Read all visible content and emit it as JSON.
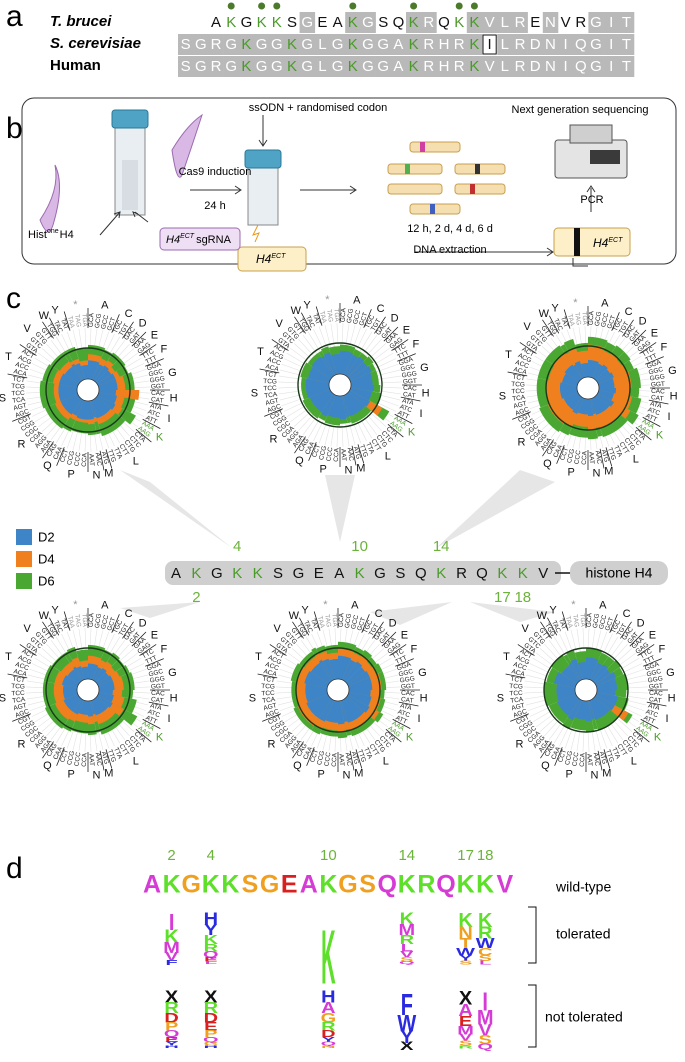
{
  "panel_labels": [
    "a",
    "b",
    "c",
    "d"
  ],
  "alignment": {
    "rows": [
      {
        "species": "T. brucei",
        "offset": 2,
        "sequence": "AKGKKSGEAKGSQKRQKKVLRENVRGIT"
      },
      {
        "species": "S. cerevisiae",
        "offset": 0,
        "sequence": "SGRGKGGKGLGKGGAKRHRKILRDNIQGIT"
      },
      {
        "species": "Human",
        "offset": 0,
        "sequence": "SGRGKGGKGLGKGGAKRHRKVLRDNIQGIT"
      }
    ],
    "highlight_residue": "K",
    "highlight_color": "#4a9a2a",
    "conserved_color": "#b9b9b9"
  },
  "workflow": {
    "hist_label": {
      "base": "Hist",
      "sup": "one",
      "rest": "H4"
    },
    "sgrna_label": {
      "base": "H4",
      "sup": "ECT",
      "rest": "sgRNA"
    },
    "ect_label": {
      "base": "H4",
      "sup": "ECT"
    },
    "cas9": "Cas9 induction",
    "time": "24 h",
    "ssodn": "ssODN + randomised codon",
    "ngs": "Next generation sequencing",
    "timepoints": "12 h, 2 d, 4 d, 6 d",
    "extraction": "DNA extraction",
    "pcr": "PCR"
  },
  "chart_data": {
    "type": "radial-bar",
    "series_names": [
      "D2",
      "D4",
      "D6"
    ],
    "colors": [
      "#3d85c6",
      "#f07f1e",
      "#4aa832"
    ],
    "groups": [
      {
        "aa": "A",
        "codons": [
          "GCA",
          "GCG",
          "GCC",
          "GCT"
        ]
      },
      {
        "aa": "C",
        "codons": [
          "TGC",
          "TGT"
        ]
      },
      {
        "aa": "D",
        "codons": [
          "GAC",
          "GAT"
        ]
      },
      {
        "aa": "E",
        "codons": [
          "GAA",
          "GAG"
        ]
      },
      {
        "aa": "F",
        "codons": [
          "TTC",
          "TTT"
        ]
      },
      {
        "aa": "G",
        "codons": [
          "GGA",
          "GGC",
          "GGG",
          "GGT"
        ]
      },
      {
        "aa": "H",
        "codons": [
          "CAC",
          "CAT"
        ]
      },
      {
        "aa": "I",
        "codons": [
          "ATA",
          "ATC",
          "ATT"
        ]
      },
      {
        "aa": "K",
        "codons": [
          "AAA",
          "AAG"
        ],
        "color": "#4a9a2a"
      },
      {
        "aa": "L",
        "codons": [
          "CTA",
          "CTC",
          "CTG",
          "CTT",
          "TTA",
          "TTG"
        ]
      },
      {
        "aa": "M",
        "codons": [
          "ATG"
        ]
      },
      {
        "aa": "N",
        "codons": [
          "AAC",
          "AAT"
        ]
      },
      {
        "aa": "P",
        "codons": [
          "CCA",
          "CCC",
          "CCG",
          "CCT"
        ]
      },
      {
        "aa": "Q",
        "codons": [
          "CAA",
          "CAG"
        ]
      },
      {
        "aa": "R",
        "codons": [
          "AGA",
          "AGG",
          "CGA",
          "CGC",
          "CGG",
          "CGT"
        ]
      },
      {
        "aa": "S",
        "codons": [
          "AGC",
          "AGT",
          "TCA",
          "TCC",
          "TCG",
          "TCT"
        ]
      },
      {
        "aa": "T",
        "codons": [
          "ACA",
          "ACC",
          "ACG",
          "ACT"
        ]
      },
      {
        "aa": "V",
        "codons": [
          "GTA",
          "GTC",
          "GTG",
          "GTT"
        ]
      },
      {
        "aa": "W",
        "codons": [
          "TGG"
        ]
      },
      {
        "aa": "Y",
        "codons": [
          "TAC",
          "TAT"
        ]
      },
      {
        "aa": "*",
        "codons": [
          "TAA",
          "TAG",
          "TGA"
        ],
        "color": "#999999"
      }
    ],
    "charts": [
      {
        "residue": "4",
        "series": [
          [
            0.6,
            0.55,
            0.6,
            0.55,
            0.6,
            0.6,
            0.55,
            0.6,
            0.65,
            0.6,
            0.55,
            0.6,
            0.6,
            0.55,
            0.6,
            0.6,
            0.6,
            0.55,
            0.6,
            0.55,
            0.45
          ],
          [
            0.8,
            0.75,
            0.8,
            0.7,
            0.75,
            0.85,
            1.3,
            0.85,
            0.9,
            0.8,
            0.7,
            0.75,
            0.7,
            0.7,
            0.8,
            0.75,
            0.8,
            0.75,
            0.7,
            0.7,
            0.6
          ],
          [
            1.1,
            1.05,
            1.1,
            1.1,
            1.05,
            1.15,
            1.25,
            1.2,
            1.4,
            1.2,
            1.1,
            1.1,
            1.05,
            1.1,
            1.15,
            1.2,
            1.15,
            1.1,
            1.1,
            1.1,
            1.0
          ]
        ]
      },
      {
        "residue": "10",
        "series": [
          [
            0.75,
            0.7,
            0.75,
            0.7,
            0.75,
            0.7,
            0.75,
            0.7,
            0.75,
            0.7,
            0.7,
            0.75,
            0.7,
            0.75,
            0.7,
            0.75,
            0.7,
            0.75,
            0.7,
            0.75,
            0.65
          ],
          [
            0.5,
            0.45,
            0.45,
            0.5,
            0.45,
            0.5,
            0.45,
            0.5,
            1.2,
            0.5,
            0.45,
            0.5,
            0.45,
            0.5,
            0.45,
            0.5,
            0.45,
            0.5,
            0.45,
            0.5,
            0.4
          ],
          [
            0.95,
            0.9,
            0.9,
            0.95,
            0.9,
            0.9,
            0.95,
            1.0,
            1.45,
            0.95,
            0.9,
            0.9,
            0.95,
            0.9,
            0.95,
            0.9,
            0.95,
            0.9,
            0.9,
            0.95,
            0.9
          ]
        ]
      },
      {
        "residue": "14",
        "series": [
          [
            0.55,
            0.5,
            0.55,
            0.5,
            0.55,
            0.5,
            0.55,
            0.5,
            0.6,
            0.55,
            0.5,
            0.55,
            0.5,
            0.55,
            0.5,
            0.55,
            0.5,
            0.55,
            0.5,
            0.55,
            0.45
          ],
          [
            1.05,
            0.95,
            1.0,
            0.95,
            1.0,
            1.05,
            1.0,
            1.1,
            1.2,
            1.0,
            0.95,
            1.0,
            0.9,
            1.0,
            1.05,
            1.0,
            0.95,
            1.0,
            0.95,
            1.0,
            0.85
          ],
          [
            1.3,
            1.25,
            1.3,
            1.3,
            1.25,
            1.35,
            1.3,
            1.4,
            1.5,
            1.3,
            1.25,
            1.3,
            1.25,
            1.3,
            1.35,
            1.3,
            1.3,
            1.3,
            1.25,
            1.3,
            1.1
          ]
        ]
      },
      {
        "residue": "2",
        "series": [
          [
            0.5,
            0.45,
            0.5,
            0.45,
            0.5,
            0.5,
            0.45,
            0.5,
            0.55,
            0.5,
            0.45,
            0.5,
            0.45,
            0.5,
            0.5,
            0.45,
            0.5,
            0.45,
            0.5,
            0.45,
            0.4
          ],
          [
            0.75,
            0.7,
            0.75,
            0.7,
            0.75,
            0.8,
            0.75,
            0.85,
            0.95,
            0.8,
            0.7,
            0.75,
            0.7,
            0.75,
            0.8,
            0.75,
            0.75,
            0.7,
            0.7,
            0.75,
            0.6
          ],
          [
            1.1,
            1.05,
            1.1,
            1.05,
            1.1,
            1.15,
            1.1,
            1.25,
            1.45,
            1.15,
            1.05,
            1.1,
            1.05,
            1.1,
            1.15,
            1.1,
            1.1,
            1.05,
            1.05,
            1.1,
            0.95
          ]
        ]
      },
      {
        "residue": "17",
        "series": [
          [
            0.75,
            0.7,
            0.75,
            0.7,
            0.75,
            0.75,
            0.7,
            0.75,
            0.8,
            0.75,
            0.7,
            0.75,
            0.7,
            0.75,
            0.75,
            0.7,
            0.75,
            0.7,
            0.75,
            0.7,
            0.65
          ],
          [
            1.0,
            0.95,
            1.0,
            0.95,
            1.0,
            1.05,
            1.0,
            1.05,
            1.15,
            1.0,
            0.95,
            1.0,
            0.95,
            1.0,
            1.05,
            1.0,
            1.0,
            0.95,
            1.0,
            0.95,
            0.85
          ],
          [
            1.2,
            1.15,
            1.2,
            1.15,
            1.2,
            1.2,
            1.15,
            1.2,
            1.3,
            1.2,
            1.15,
            1.2,
            1.15,
            1.2,
            1.2,
            1.15,
            1.2,
            1.15,
            1.2,
            1.15,
            1.1
          ]
        ]
      },
      {
        "residue": "18",
        "series": [
          [
            0.7,
            0.6,
            0.65,
            0.6,
            0.7,
            0.65,
            0.6,
            0.7,
            0.7,
            0.65,
            0.6,
            0.65,
            0.6,
            0.7,
            0.65,
            0.6,
            0.7,
            0.6,
            0.65,
            0.7,
            0.55
          ],
          [
            0.6,
            0.55,
            0.55,
            0.6,
            0.55,
            0.6,
            0.55,
            0.6,
            1.2,
            0.6,
            0.55,
            0.6,
            0.55,
            0.6,
            0.55,
            0.6,
            0.55,
            0.6,
            0.55,
            0.6,
            0.5
          ],
          [
            1.0,
            0.95,
            0.95,
            1.0,
            0.95,
            1.0,
            0.95,
            1.05,
            1.35,
            1.0,
            0.95,
            1.0,
            0.95,
            1.0,
            0.95,
            1.0,
            0.95,
            1.0,
            0.95,
            1.0,
            0.9
          ]
        ]
      }
    ]
  },
  "histone": {
    "sequence": "AKGKKSGEAKGSQKRQKKV",
    "name": "histone H4",
    "positions_above": [
      {
        "index": 3,
        "label": "4"
      },
      {
        "index": 9,
        "label": "10"
      },
      {
        "index": 13,
        "label": "14"
      }
    ],
    "positions_below": [
      {
        "index": 1,
        "label": "2"
      },
      {
        "index": 16,
        "label": "17"
      },
      {
        "index": 17,
        "label": "18"
      }
    ]
  },
  "logo": {
    "numbers": [
      {
        "index": 1,
        "label": "2"
      },
      {
        "index": 3,
        "label": "4"
      },
      {
        "index": 9,
        "label": "10"
      },
      {
        "index": 13,
        "label": "14"
      },
      {
        "index": 16,
        "label": "17"
      },
      {
        "index": 17,
        "label": "18"
      }
    ],
    "wild_type_label": "wild-type",
    "tolerated_label": "tolerated",
    "not_tolerated_label": "not tolerated",
    "colors": {
      "A": "#d63bd6",
      "K": "#5ee02a",
      "G": "#f0a020",
      "S": "#f0a020",
      "E": "#d92020",
      "Q": "#d63bd6",
      "R": "#5ee02a",
      "V": "#d63bd6",
      "I": "#d63bd6",
      "M": "#d63bd6",
      "F": "#2a2ae0",
      "W": "#2a2ae0",
      "Y": "#2a2ae0",
      "H": "#2a2ae0",
      "L": "#d63bd6",
      "N": "#f0a020",
      "T": "#f0a020",
      "C": "#f0a020",
      "D": "#d92020",
      "P": "#f0a020",
      "X": "#111111"
    },
    "tolerated": [
      {
        "index": 1,
        "letters": "IKMVF"
      },
      {
        "index": 3,
        "letters": "HYKRQEL"
      },
      {
        "index": 9,
        "letters": "K"
      },
      {
        "index": 13,
        "letters": "KMRLVSQ"
      },
      {
        "index": 16,
        "letters": "KNTWYS"
      },
      {
        "index": 17,
        "letters": "KRWCSL"
      }
    ],
    "not_tolerated": [
      {
        "index": 1,
        "letters": "XRDPQEYH"
      },
      {
        "index": 3,
        "letters": "XRDEPQCH"
      },
      {
        "index": 9,
        "letters": "HAGRDYQN"
      },
      {
        "index": 13,
        "letters": "FWYX"
      },
      {
        "index": 16,
        "letters": "XAEMVSR"
      },
      {
        "index": 17,
        "letters": "IMVSQ"
      }
    ]
  }
}
